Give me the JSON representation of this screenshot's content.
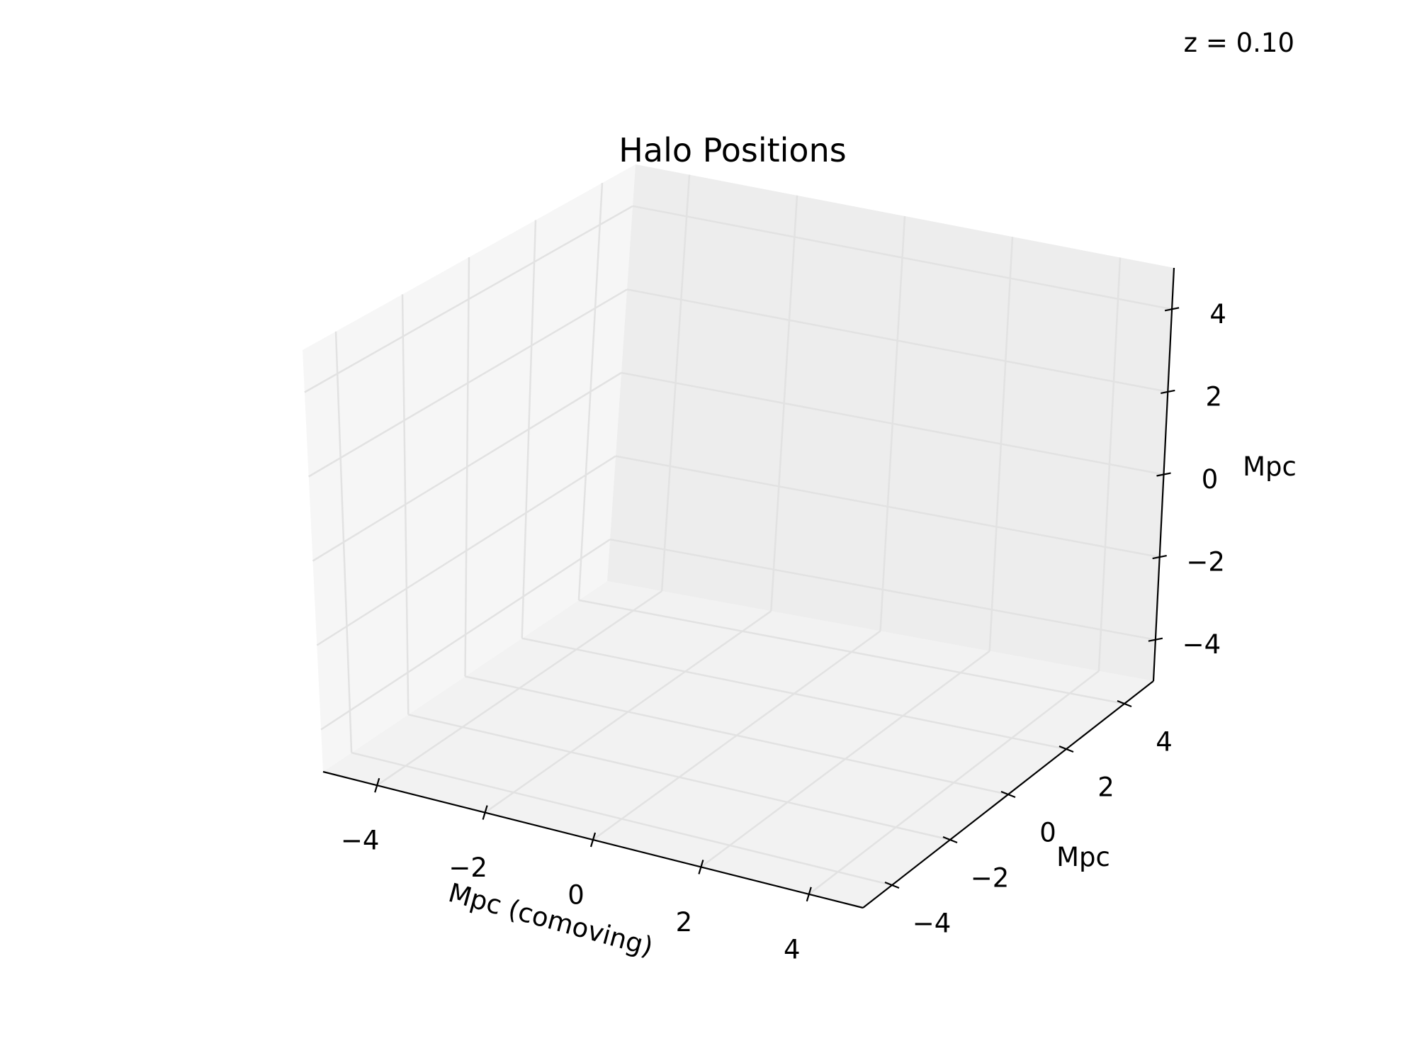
{
  "annotation": "z = 0.10",
  "chart_data": {
    "type": "scatter",
    "title": "Halo Positions",
    "xlabel": "Mpc (comoving)",
    "ylabel": "Mpc",
    "zlabel": "Mpc",
    "xlim": [
      -5,
      5
    ],
    "ylim": [
      -5,
      5
    ],
    "zlim": [
      -5,
      5
    ],
    "xticks": [
      -4,
      -2,
      0,
      2,
      4
    ],
    "yticks": [
      -4,
      -2,
      0,
      2,
      4
    ],
    "zticks": [
      -4,
      -2,
      0,
      2,
      4
    ],
    "xtick_labels": [
      "−4",
      "−2",
      "0",
      "2",
      "4"
    ],
    "ytick_labels": [
      "−4",
      "−2",
      "0",
      "2",
      "4"
    ],
    "ztick_labels": [
      "−4",
      "−2",
      "0",
      "2",
      "4"
    ],
    "grid": true,
    "series": [
      {
        "x": [],
        "y": [],
        "z": []
      }
    ],
    "colors": {
      "pane_back": "#ededed",
      "pane_left": "#f6f6f6",
      "pane_floor": "#f2f2f2",
      "grid": "#e2e2e2",
      "axis": "#000000"
    }
  }
}
